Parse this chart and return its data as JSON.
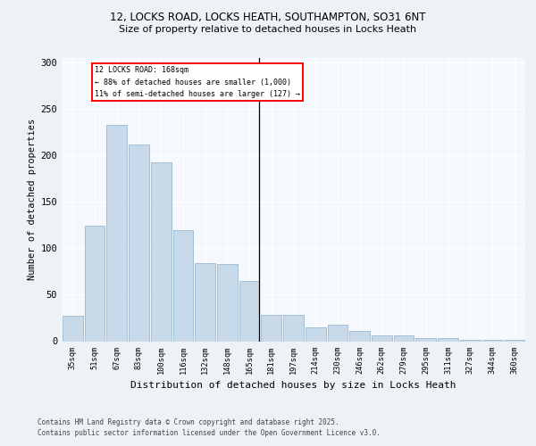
{
  "title_line1": "12, LOCKS ROAD, LOCKS HEATH, SOUTHAMPTON, SO31 6NT",
  "title_line2": "Size of property relative to detached houses in Locks Heath",
  "xlabel": "Distribution of detached houses by size in Locks Heath",
  "ylabel": "Number of detached properties",
  "categories": [
    "35sqm",
    "51sqm",
    "67sqm",
    "83sqm",
    "100sqm",
    "116sqm",
    "132sqm",
    "148sqm",
    "165sqm",
    "181sqm",
    "197sqm",
    "214sqm",
    "230sqm",
    "246sqm",
    "262sqm",
    "279sqm",
    "295sqm",
    "311sqm",
    "327sqm",
    "344sqm",
    "360sqm"
  ],
  "values": [
    27,
    124,
    233,
    212,
    193,
    120,
    84,
    83,
    65,
    28,
    28,
    15,
    18,
    11,
    6,
    6,
    3,
    3,
    1,
    1,
    1
  ],
  "bar_color": "#c8daea",
  "bar_edge_color": "#9ab8d0",
  "vline_x_index": 8,
  "annotation_title": "12 LOCKS ROAD: 168sqm",
  "annotation_line2": "← 88% of detached houses are smaller (1,000)",
  "annotation_line3": "11% of semi-detached houses are larger (127) →",
  "footer_line1": "Contains HM Land Registry data © Crown copyright and database right 2025.",
  "footer_line2": "Contains public sector information licensed under the Open Government Licence v3.0.",
  "ylim": [
    0,
    305
  ],
  "yticks": [
    0,
    50,
    100,
    150,
    200,
    250,
    300
  ],
  "bg_color": "#eef2f7",
  "plot_bg_color": "#f5f8fc"
}
